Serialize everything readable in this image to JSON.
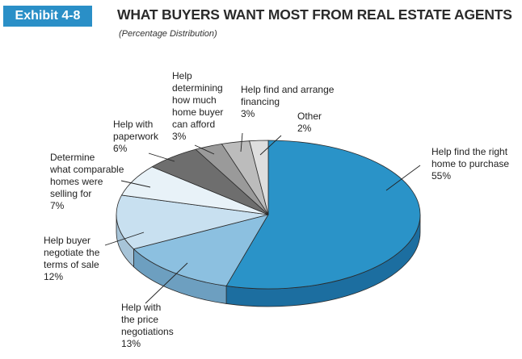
{
  "header": {
    "exhibit": "Exhibit 4-8",
    "title": "WHAT BUYERS WANT MOST FROM REAL ESTATE AGENTS",
    "subtitle": "(Percentage Distribution)"
  },
  "chart_data": {
    "type": "pie",
    "title": "WHAT BUYERS WANT MOST FROM REAL ESTATE AGENTS",
    "subtitle": "(Percentage Distribution)",
    "style": "3d-tilted",
    "unit": "%",
    "slices": [
      {
        "label": "Help find the right home to purchase",
        "value": 55,
        "value_label": "55%",
        "color": "#2a93c8",
        "side_color": "#1c6ea0"
      },
      {
        "label": "Help with the price negotiations",
        "value": 13,
        "value_label": "13%",
        "color": "#8cc0e0",
        "side_color": "#6d9fc0"
      },
      {
        "label": "Help buyer negotiate the terms of sale",
        "value": 12,
        "value_label": "12%",
        "color": "#c8e0f0",
        "side_color": "#a7c4d8"
      },
      {
        "label": "Determine what comparable homes were selling for",
        "value": 7,
        "value_label": "7%",
        "color": "#e8f2f8",
        "side_color": "#cfdde8"
      },
      {
        "label": "Help with paperwork",
        "value": 6,
        "value_label": "6%",
        "color": "#6e6e6e",
        "side_color": "#555555"
      },
      {
        "label": "Help determining how much home buyer can afford",
        "value": 3,
        "value_label": "3%",
        "color": "#9a9a9a",
        "side_color": "#7d7d7d"
      },
      {
        "label": "Help find and arrange financing",
        "value": 3,
        "value_label": "3%",
        "color": "#bcbcbc",
        "side_color": "#9c9c9c"
      },
      {
        "label": "Other",
        "value": 2,
        "value_label": "2%",
        "color": "#dedede",
        "side_color": "#c2c2c2"
      }
    ]
  }
}
